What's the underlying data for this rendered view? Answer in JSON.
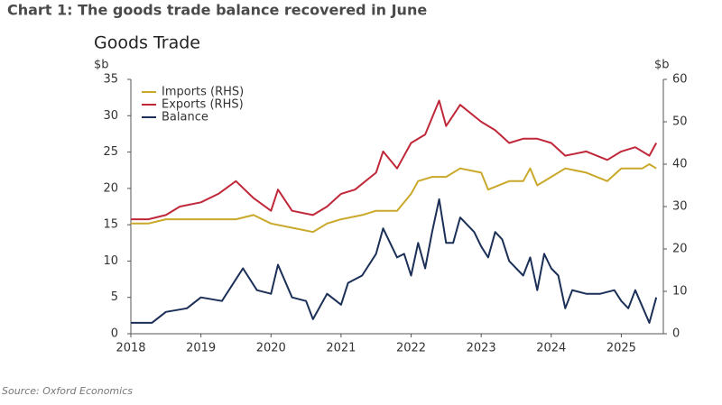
{
  "chart_data": {
    "type": "line",
    "title": "Chart 1: The goods trade balance recovered in June",
    "subtitle": "Goods Trade",
    "y_label": "$b",
    "y2_label": "$b",
    "source": "Source: Oxford Economics",
    "xlim": [
      2018,
      2025.6
    ],
    "xticks": [
      2018,
      2019,
      2020,
      2021,
      2022,
      2023,
      2024,
      2025
    ],
    "ylim": [
      0,
      35
    ],
    "yticks": [
      0,
      5,
      10,
      15,
      20,
      25,
      30,
      35
    ],
    "y2lim": [
      0,
      60
    ],
    "y2ticks": [
      0,
      10,
      20,
      30,
      40,
      50,
      60
    ],
    "legend": "upper-left",
    "series": [
      {
        "name": "Imports (RHS)",
        "color": "#c9a82a",
        "axis": "y2",
        "x": [
          2018,
          2018.25,
          2018.5,
          2018.75,
          2019,
          2019.25,
          2019.5,
          2019.75,
          2020,
          2020.3,
          2020.6,
          2020.8,
          2021,
          2021.3,
          2021.5,
          2021.8,
          2022,
          2022.1,
          2022.3,
          2022.5,
          2022.7,
          2023,
          2023.1,
          2023.4,
          2023.6,
          2023.7,
          2023.8,
          2024,
          2024.2,
          2024.5,
          2024.8,
          2025,
          2025.3,
          2025.4,
          2025.5
        ],
        "values": [
          26,
          26,
          27,
          27,
          27,
          27,
          27,
          28,
          26,
          25,
          24,
          26,
          27,
          28,
          29,
          29,
          33,
          36,
          37,
          37,
          39,
          38,
          34,
          36,
          36,
          39,
          35,
          37,
          39,
          38,
          36,
          39,
          39,
          40,
          39
        ]
      },
      {
        "name": "Exports (RHS)",
        "color": "#c0283a",
        "axis": "y2",
        "x": [
          2018,
          2018.25,
          2018.5,
          2018.7,
          2019,
          2019.25,
          2019.5,
          2019.75,
          2020,
          2020.1,
          2020.3,
          2020.6,
          2020.8,
          2021,
          2021.2,
          2021.5,
          2021.6,
          2021.8,
          2022,
          2022.2,
          2022.4,
          2022.5,
          2022.7,
          2023,
          2023.2,
          2023.4,
          2023.6,
          2023.8,
          2024,
          2024.2,
          2024.5,
          2024.8,
          2025,
          2025.2,
          2025.4,
          2025.5
        ],
        "values": [
          27,
          27,
          28,
          30,
          31,
          33,
          36,
          32,
          29,
          34,
          29,
          28,
          30,
          33,
          34,
          38,
          43,
          39,
          45,
          47,
          55,
          49,
          54,
          50,
          48,
          45,
          46,
          46,
          45,
          42,
          43,
          41,
          43,
          44,
          42,
          45
        ]
      },
      {
        "name": "Balance",
        "color": "#1b2f57",
        "x": [
          2018,
          2018.3,
          2018.5,
          2018.8,
          2019,
          2019.3,
          2019.6,
          2019.8,
          2020,
          2020.1,
          2020.3,
          2020.5,
          2020.6,
          2020.8,
          2021,
          2021.1,
          2021.3,
          2021.5,
          2021.6,
          2021.8,
          2021.9,
          2022,
          2022.1,
          2022.2,
          2022.3,
          2022.4,
          2022.5,
          2022.6,
          2022.7,
          2022.9,
          2023,
          2023.1,
          2023.2,
          2023.3,
          2023.4,
          2023.6,
          2023.7,
          2023.8,
          2023.9,
          2024,
          2024.1,
          2024.2,
          2024.3,
          2024.5,
          2024.7,
          2024.9,
          2025,
          2025.1,
          2025.2,
          2025.4,
          2025.5
        ],
        "values": [
          1.5,
          1.5,
          3,
          3.5,
          5,
          4.5,
          9,
          6,
          5.5,
          9.5,
          5,
          4.5,
          2,
          5.5,
          4,
          7,
          8,
          11,
          14.5,
          10.5,
          11,
          8,
          12.5,
          9,
          14,
          18.5,
          12.5,
          12.5,
          16,
          14,
          12,
          10.5,
          14,
          13,
          10,
          8,
          10.5,
          6,
          11,
          9,
          8,
          3.5,
          6,
          5.5,
          5.5,
          6,
          4.5,
          3.5,
          6,
          1.5,
          5
        ]
      }
    ]
  }
}
